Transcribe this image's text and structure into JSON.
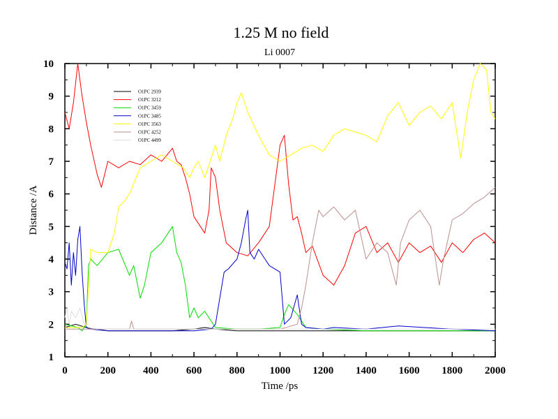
{
  "chart_data": {
    "type": "line",
    "title": "1.25 M no field",
    "subtitle": "Li 0007",
    "xlabel": "Time /ps",
    "ylabel": "Distance /A",
    "xlim": [
      0,
      2000
    ],
    "ylim": [
      1,
      10
    ],
    "x_ticks": [
      0,
      200,
      400,
      600,
      800,
      1000,
      1200,
      1400,
      1600,
      1800,
      2000
    ],
    "y_ticks": [
      1,
      2,
      3,
      4,
      5,
      6,
      7,
      8,
      9,
      10
    ],
    "legend_position": "top-left",
    "series": [
      {
        "name": "O1PC 2939",
        "color": "#000000",
        "x": [
          0,
          50,
          100,
          150,
          200,
          300,
          400,
          500,
          600,
          650,
          700,
          800,
          900,
          1000,
          1100,
          1200,
          1400,
          1600,
          1800,
          2000
        ],
        "y": [
          1.9,
          2.0,
          1.9,
          1.85,
          1.8,
          1.8,
          1.8,
          1.8,
          1.85,
          1.9,
          1.85,
          1.8,
          1.8,
          1.8,
          1.8,
          1.8,
          1.8,
          1.8,
          1.8,
          1.8
        ]
      },
      {
        "name": "O1PC 3212",
        "color": "#ff0000",
        "x": [
          0,
          20,
          40,
          60,
          80,
          100,
          120,
          150,
          170,
          200,
          250,
          300,
          350,
          400,
          450,
          500,
          520,
          540,
          560,
          580,
          600,
          620,
          650,
          670,
          680,
          700,
          720,
          750,
          800,
          850,
          900,
          950,
          1000,
          1020,
          1040,
          1060,
          1080,
          1100,
          1120,
          1150,
          1200,
          1250,
          1300,
          1350,
          1400,
          1450,
          1500,
          1550,
          1600,
          1650,
          1700,
          1750,
          1800,
          1850,
          1900,
          1950,
          2000
        ],
        "y": [
          8.5,
          8.0,
          8.8,
          10.0,
          9.0,
          8.2,
          7.5,
          6.6,
          6.2,
          7.0,
          6.8,
          7.0,
          6.9,
          7.2,
          7.0,
          7.4,
          7.0,
          6.9,
          6.5,
          6.0,
          5.3,
          5.1,
          4.8,
          5.5,
          6.8,
          6.5,
          5.5,
          4.5,
          4.2,
          4.1,
          4.5,
          5.0,
          7.5,
          7.8,
          6.3,
          5.2,
          5.3,
          4.8,
          4.2,
          4.4,
          3.5,
          3.2,
          3.8,
          4.8,
          5.0,
          4.2,
          4.5,
          3.9,
          4.5,
          4.2,
          4.4,
          3.9,
          4.5,
          4.2,
          4.6,
          4.8,
          4.5
        ]
      },
      {
        "name": "O1PC 3459",
        "color": "#00dd00",
        "x": [
          0,
          60,
          80,
          100,
          110,
          120,
          150,
          200,
          250,
          300,
          320,
          350,
          370,
          400,
          450,
          500,
          520,
          540,
          560,
          580,
          600,
          620,
          650,
          700,
          800,
          900,
          1000,
          1020,
          1040,
          1080,
          1100,
          1120,
          1200,
          1400,
          1600,
          1800,
          2000
        ],
        "y": [
          2.0,
          1.9,
          1.8,
          2.0,
          3.8,
          4.0,
          3.8,
          4.2,
          4.3,
          3.5,
          3.8,
          2.8,
          3.2,
          4.2,
          4.5,
          5.0,
          4.2,
          3.9,
          3.2,
          2.2,
          2.5,
          2.2,
          2.4,
          1.9,
          1.85,
          1.85,
          1.9,
          2.3,
          2.6,
          2.3,
          2.1,
          1.9,
          1.85,
          1.8,
          1.8,
          1.8,
          1.8
        ]
      },
      {
        "name": "O1PC 3485",
        "color": "#0000cc",
        "x": [
          0,
          10,
          20,
          30,
          40,
          50,
          60,
          70,
          80,
          90,
          100,
          120,
          200,
          400,
          600,
          680,
          700,
          720,
          740,
          760,
          800,
          820,
          840,
          850,
          860,
          880,
          900,
          950,
          1000,
          1020,
          1050,
          1080,
          1100,
          1120,
          1200,
          1250,
          1400,
          1550,
          1800,
          2000
        ],
        "y": [
          3.9,
          3.7,
          4.5,
          3.2,
          4.2,
          3.5,
          4.6,
          5.0,
          3.6,
          2.6,
          1.9,
          1.85,
          1.8,
          1.8,
          1.8,
          1.85,
          2.0,
          2.8,
          3.6,
          3.7,
          4.0,
          4.5,
          5.2,
          5.5,
          4.2,
          4.0,
          4.3,
          3.8,
          3.6,
          2.0,
          2.2,
          2.9,
          2.0,
          1.9,
          1.85,
          1.9,
          1.85,
          1.95,
          1.85,
          1.8
        ]
      },
      {
        "name": "O1PC 3563",
        "color": "#ffff00",
        "x": [
          0,
          80,
          100,
          120,
          150,
          200,
          230,
          250,
          280,
          300,
          350,
          400,
          450,
          500,
          550,
          580,
          600,
          620,
          650,
          700,
          720,
          750,
          780,
          800,
          820,
          850,
          900,
          950,
          1000,
          1050,
          1100,
          1150,
          1200,
          1250,
          1300,
          1350,
          1400,
          1450,
          1500,
          1550,
          1600,
          1650,
          1700,
          1750,
          1800,
          1840,
          1870,
          1900,
          1930,
          1960,
          1980,
          2000
        ],
        "y": [
          1.9,
          1.9,
          2.0,
          4.3,
          4.2,
          4.2,
          4.8,
          5.6,
          5.8,
          6.0,
          6.8,
          7.0,
          7.2,
          7.0,
          6.8,
          6.5,
          6.8,
          7.0,
          6.5,
          7.5,
          7.0,
          7.8,
          8.3,
          8.8,
          9.1,
          8.5,
          7.8,
          7.2,
          7.0,
          7.2,
          7.4,
          7.5,
          7.3,
          7.8,
          8.0,
          7.9,
          7.8,
          7.6,
          8.4,
          8.8,
          8.1,
          8.5,
          8.7,
          8.3,
          8.8,
          7.1,
          8.5,
          9.5,
          10.0,
          9.8,
          8.5,
          8.3
        ]
      },
      {
        "name": "O1PC 4252",
        "color": "#bc8f8f",
        "x": [
          0,
          300,
          310,
          320,
          400,
          600,
          700,
          800,
          1000,
          1080,
          1100,
          1120,
          1150,
          1180,
          1200,
          1250,
          1300,
          1350,
          1400,
          1450,
          1500,
          1540,
          1560,
          1600,
          1650,
          1700,
          1740,
          1760,
          1800,
          1850,
          1900,
          1950,
          2000
        ],
        "y": [
          1.85,
          1.85,
          2.1,
          1.85,
          1.85,
          1.85,
          1.85,
          1.85,
          1.85,
          2.0,
          2.5,
          3.2,
          4.5,
          5.5,
          5.3,
          5.6,
          5.2,
          5.5,
          4.0,
          4.5,
          4.2,
          3.2,
          4.5,
          5.2,
          5.5,
          5.0,
          3.2,
          4.0,
          5.2,
          5.4,
          5.7,
          5.9,
          6.2
        ]
      },
      {
        "name": "O1PC 4499",
        "color": "#dddddd",
        "x": [
          0,
          10,
          20,
          30,
          50,
          70,
          90,
          110,
          150,
          300,
          600,
          900,
          1200,
          1600,
          2000
        ],
        "y": [
          2.2,
          2.5,
          2.0,
          2.4,
          2.2,
          2.5,
          2.0,
          1.9,
          1.85,
          1.85,
          1.85,
          1.85,
          1.85,
          1.85,
          1.85
        ]
      }
    ]
  }
}
